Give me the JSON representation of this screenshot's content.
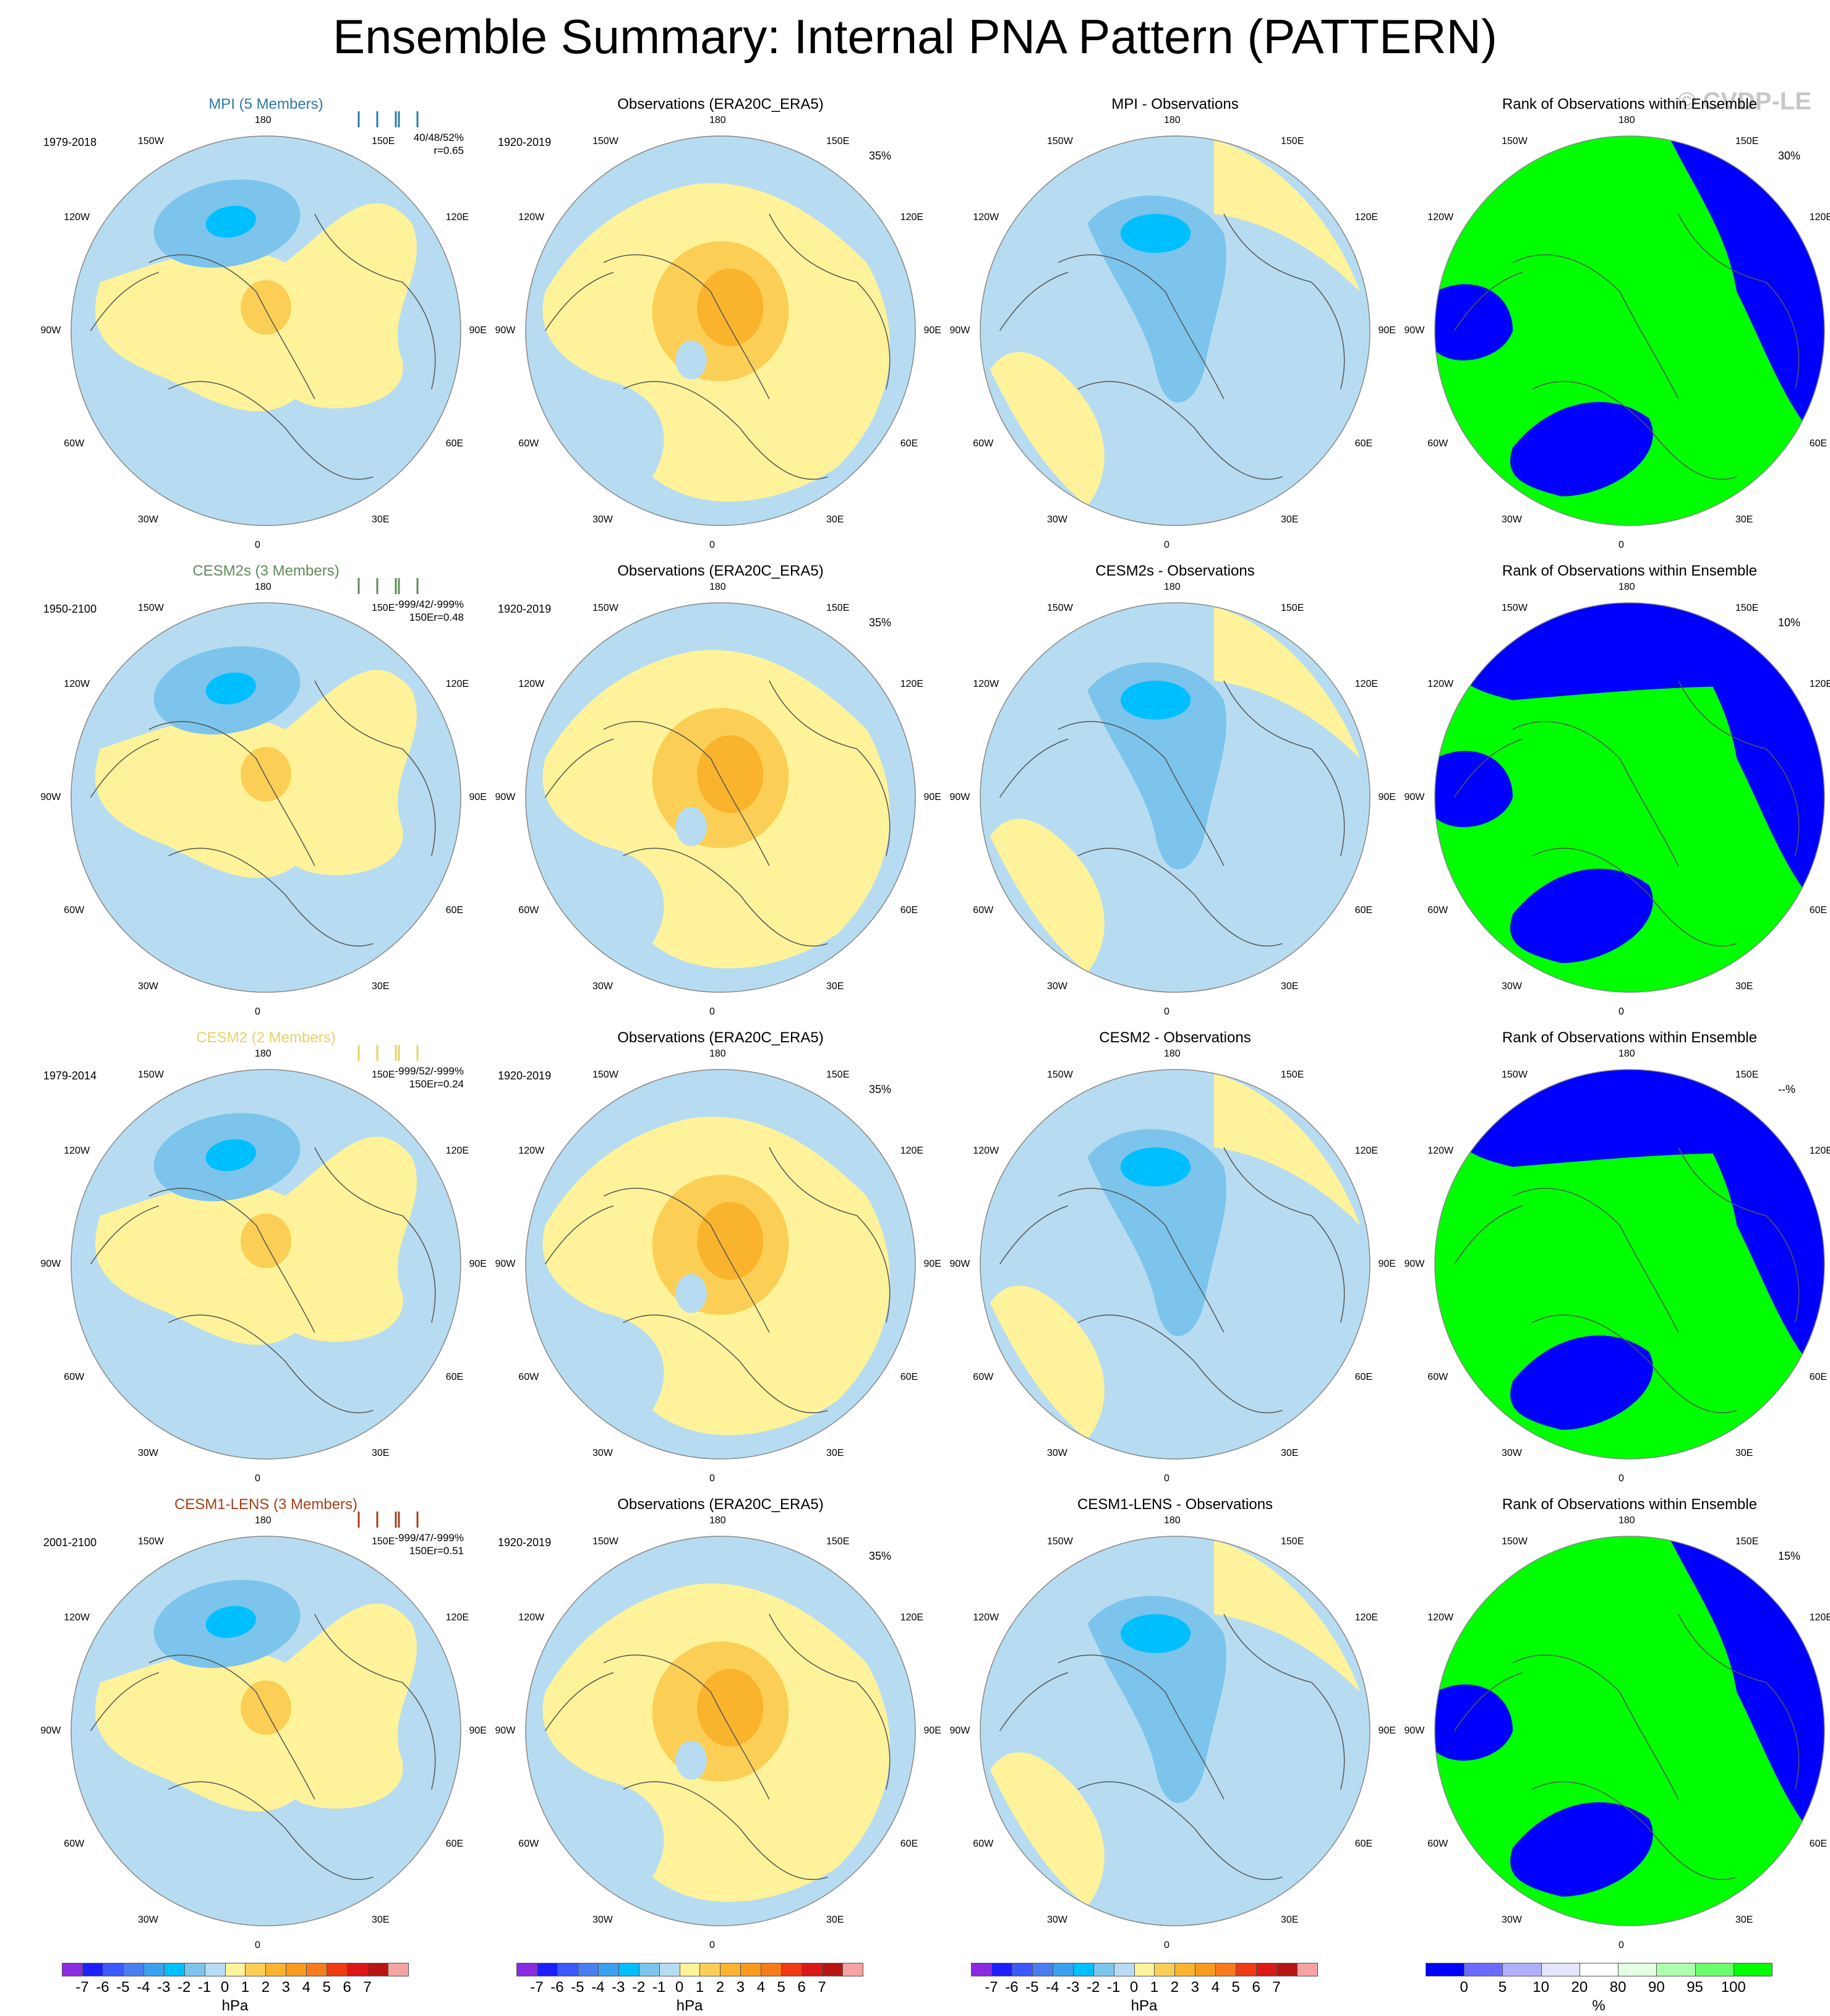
{
  "title": "Ensemble Summary: Internal PNA Pattern (PATTERN)",
  "copyright": "© CVDP-LE",
  "lon_labels": {
    "top": "180",
    "bottom": "0",
    "left": "90W",
    "right": "90E",
    "ul": "150W",
    "ur": "150E",
    "lu": "120W",
    "ru": "120E",
    "ll": "60W",
    "rl": "60E",
    "bl": "30W",
    "br": "30E"
  },
  "colors": {
    "blue_light": "#b7dcf1",
    "blue_mid": "#7cc4ec",
    "blue_dark": "#56b0e8",
    "cyan": "#00bfff",
    "yellow": "#fef39a",
    "orange_light": "#fbcf55",
    "orange": "#fab32d",
    "orange_dark": "#f5a000",
    "green": "#00ff00",
    "rank_blue": "#0000ff",
    "land": "#555555"
  },
  "rows": [
    {
      "model": {
        "title": "MPI (5 Members)",
        "title_color": "#2b7ba8",
        "period": "1979-2018",
        "stats": [
          "40/48/52%",
          "r=0.65"
        ],
        "bar_color": "#2b7ba8"
      },
      "obs": {
        "title": "Observations (ERA20C_ERA5)",
        "period": "1920-2019",
        "pct": "35%"
      },
      "diff": {
        "title": "MPI - Observations"
      },
      "rank": {
        "title": "Rank of Observations within Ensemble",
        "pct": "30%"
      }
    },
    {
      "model": {
        "title": "CESM2s (3 Members)",
        "title_color": "#5e8c5a",
        "period": "1950-2100",
        "stats": [
          "-999/42/-999%",
          "150Er=0.48"
        ],
        "bar_color": "#5e8c5a"
      },
      "obs": {
        "title": "Observations (ERA20C_ERA5)",
        "period": "1920-2019",
        "pct": "35%"
      },
      "diff": {
        "title": "CESM2s - Observations"
      },
      "rank": {
        "title": "Rank of Observations within Ensemble",
        "pct": "10%"
      }
    },
    {
      "model": {
        "title": "CESM2 (2 Members)",
        "title_color": "#e3d46a",
        "period": "1979-2014",
        "stats": [
          "-999/52/-999%",
          "150Er=0.24"
        ],
        "bar_color": "#e3d46a"
      },
      "obs": {
        "title": "Observations (ERA20C_ERA5)",
        "period": "1920-2019",
        "pct": "35%"
      },
      "diff": {
        "title": "CESM2 - Observations"
      },
      "rank": {
        "title": "Rank of Observations within Ensemble",
        "pct": "--%"
      }
    },
    {
      "model": {
        "title": "CESM1-LENS (3 Members)",
        "title_color": "#a5411a",
        "period": "2001-2100",
        "stats": [
          "-999/47/-999%",
          "150Er=0.51"
        ],
        "bar_color": "#a5411a"
      },
      "obs": {
        "title": "Observations (ERA20C_ERA5)",
        "period": "1920-2019",
        "pct": "35%"
      },
      "diff": {
        "title": "CESM1-LENS - Observations"
      },
      "rank": {
        "title": "Rank of Observations within Ensemble",
        "pct": "15%"
      }
    }
  ],
  "colorbar_hpa": {
    "colors": [
      "#8a2be2",
      "#1e1eff",
      "#3c5aff",
      "#4a7ef0",
      "#3aa0f0",
      "#00bfff",
      "#7cc4ec",
      "#b7dcf1",
      "#fef39a",
      "#fbcf55",
      "#fab32d",
      "#f99a1d",
      "#f77b1c",
      "#ef3a14",
      "#dc1717",
      "#b81414",
      "#f5a3a3"
    ],
    "ticks": [
      "-7",
      "-6",
      "-5",
      "-4",
      "-3",
      "-2",
      "-1",
      "0",
      "1",
      "2",
      "3",
      "4",
      "5",
      "6",
      "7"
    ],
    "unit": "hPa"
  },
  "colorbar_rank": {
    "colors": [
      "#0000ff",
      "#6b6bff",
      "#b0b0ff",
      "#e4e4ff",
      "#ffffff",
      "#e4ffe4",
      "#b0ffb0",
      "#6bff6b",
      "#00ff00"
    ],
    "ticks": [
      "0",
      "5",
      "10",
      "20",
      "80",
      "90",
      "95",
      "100"
    ],
    "unit": "%"
  }
}
